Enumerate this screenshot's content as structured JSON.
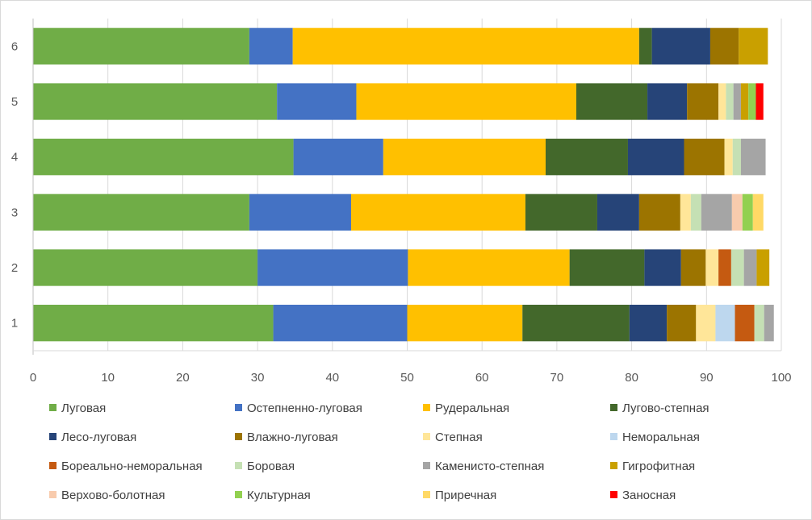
{
  "chart_data": {
    "type": "bar",
    "orientation": "horizontal",
    "stacked": true,
    "title": "",
    "xlabel": "",
    "ylabel": "",
    "xlim": [
      0,
      100
    ],
    "x_ticks": [
      0,
      10,
      20,
      30,
      40,
      50,
      60,
      70,
      80,
      90,
      100
    ],
    "grid": true,
    "legend_position": "bottom",
    "categories": [
      "1",
      "2",
      "3",
      "4",
      "5",
      "6"
    ],
    "series": [
      {
        "name": "Луговая",
        "color": "#70ad47",
        "values": [
          32.1,
          30.0,
          28.9,
          34.8,
          32.6,
          28.9
        ]
      },
      {
        "name": "Остепненно-луговая",
        "color": "#4472c4",
        "values": [
          17.9,
          20.1,
          13.6,
          12.0,
          10.6,
          5.8
        ]
      },
      {
        "name": "Рудеральная",
        "color": "#ffc000",
        "values": [
          15.4,
          21.6,
          23.3,
          21.7,
          29.4,
          46.3
        ]
      },
      {
        "name": "Лугово-степная",
        "color": "#43682b",
        "values": [
          14.3,
          10.0,
          9.6,
          11.0,
          9.5,
          1.7
        ]
      },
      {
        "name": "Лесо-луговая",
        "color": "#264478",
        "values": [
          5.0,
          4.9,
          5.6,
          7.5,
          5.3,
          7.8
        ]
      },
      {
        "name": "Влажно-луговая",
        "color": "#9c7400",
        "values": [
          3.9,
          3.3,
          5.5,
          5.4,
          4.2,
          3.8
        ]
      },
      {
        "name": "Степная",
        "color": "#ffe699",
        "values": [
          2.6,
          1.7,
          1.4,
          1.1,
          1.0,
          0
        ]
      },
      {
        "name": "Неморальная",
        "color": "#bdd7ee",
        "values": [
          2.6,
          0,
          0,
          0,
          0,
          0
        ]
      },
      {
        "name": "Бореально-неморальная",
        "color": "#c55a11",
        "values": [
          2.6,
          1.7,
          0,
          0,
          0,
          0
        ]
      },
      {
        "name": "Боровая",
        "color": "#c5e0b4",
        "values": [
          1.3,
          1.7,
          1.4,
          1.1,
          1.0,
          0
        ]
      },
      {
        "name": "Каменисто-степная",
        "color": "#a5a5a5",
        "values": [
          1.3,
          1.7,
          4.1,
          3.3,
          1.0,
          0
        ]
      },
      {
        "name": "Гигрофитная",
        "color": "#c9a000",
        "values": [
          0,
          1.7,
          0,
          0,
          1.0,
          3.9
        ]
      },
      {
        "name": "Верхово-болотная",
        "color": "#f8cbad",
        "values": [
          0,
          0,
          1.4,
          0,
          0,
          0
        ]
      },
      {
        "name": "Культурная",
        "color": "#92d050",
        "values": [
          0,
          0,
          1.4,
          0,
          1.0,
          0
        ]
      },
      {
        "name": "Приречная",
        "color": "#ffd966",
        "values": [
          0,
          0,
          1.4,
          0,
          0,
          0
        ]
      },
      {
        "name": "Заносная",
        "color": "#ff0000",
        "values": [
          0,
          0,
          0,
          0,
          1.0,
          0
        ]
      }
    ]
  }
}
